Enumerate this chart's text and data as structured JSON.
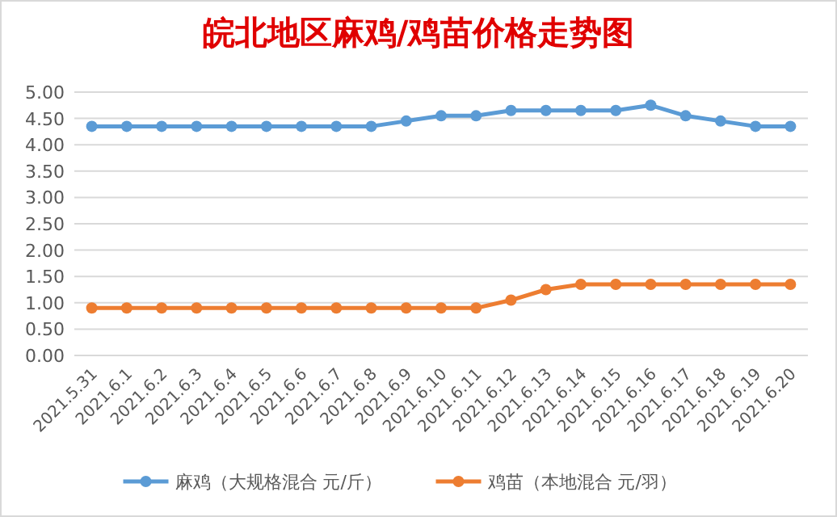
{
  "chart_data": {
    "type": "line",
    "title": "皖北地区麻鸡/鸡苗价格走势图",
    "categories": [
      "2021.5.31",
      "2021.6.1",
      "2021.6.2",
      "2021.6.3",
      "2021.6.4",
      "2021.6.5",
      "2021.6.6",
      "2021.6.7",
      "2021.6.8",
      "2021.6.9",
      "2021.6.10",
      "2021.6.11",
      "2021.6.12",
      "2021.6.13",
      "2021.6.14",
      "2021.6.15",
      "2021.6.16",
      "2021.6.17",
      "2021.6.18",
      "2021.6.19",
      "2021.6.20"
    ],
    "series": [
      {
        "name": "麻鸡（大规格混合 元/斤）",
        "color": "#5b9bd5",
        "values": [
          4.35,
          4.35,
          4.35,
          4.35,
          4.35,
          4.35,
          4.35,
          4.35,
          4.35,
          4.45,
          4.55,
          4.55,
          4.65,
          4.65,
          4.65,
          4.65,
          4.75,
          4.55,
          4.45,
          4.35,
          4.35
        ]
      },
      {
        "name": "鸡苗（本地混合 元/羽）",
        "color": "#ed7d31",
        "values": [
          0.9,
          0.9,
          0.9,
          0.9,
          0.9,
          0.9,
          0.9,
          0.9,
          0.9,
          0.9,
          0.9,
          0.9,
          1.05,
          1.25,
          1.35,
          1.35,
          1.35,
          1.35,
          1.35,
          1.35,
          1.35
        ]
      }
    ],
    "ylim": [
      0,
      5
    ],
    "yticks": [
      {
        "value": 0,
        "label": "0.00"
      },
      {
        "value": 0.5,
        "label": "0.50"
      },
      {
        "value": 1,
        "label": "1.00"
      },
      {
        "value": 1.5,
        "label": "1.50"
      },
      {
        "value": 2,
        "label": "2.00"
      },
      {
        "value": 2.5,
        "label": "2.50"
      },
      {
        "value": 3,
        "label": "3.00"
      },
      {
        "value": 3.5,
        "label": "3.50"
      },
      {
        "value": 4,
        "label": "4.00"
      },
      {
        "value": 4.5,
        "label": "4.50"
      },
      {
        "value": 5,
        "label": "5.00"
      }
    ],
    "grid": "y",
    "legend": "bottom",
    "marker": "circle",
    "line_style": "solid"
  }
}
